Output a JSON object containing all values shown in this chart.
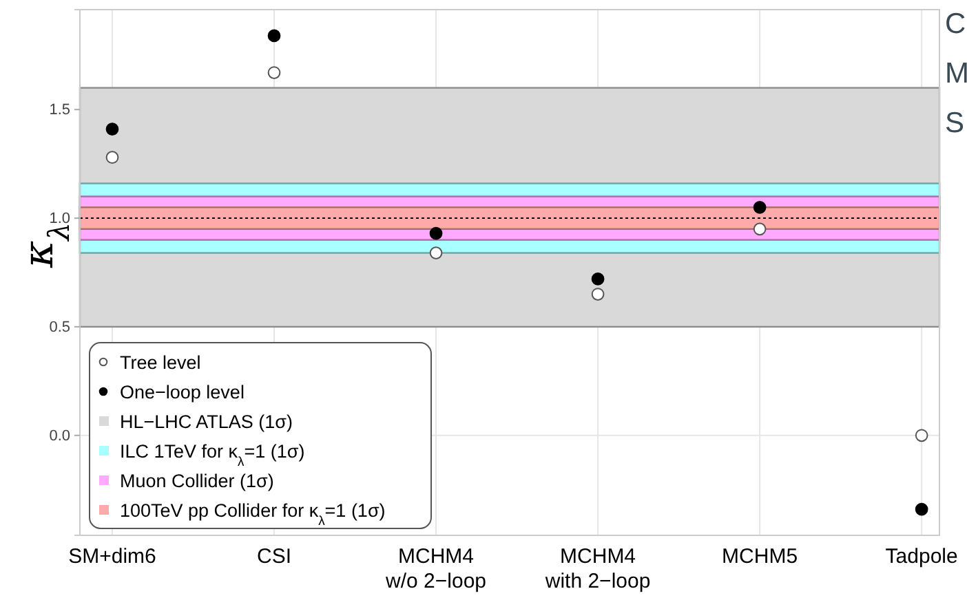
{
  "chart_data": {
    "type": "scatter",
    "ylabel": "κ$_{λ}$",
    "categories": [
      "SM+dim6",
      "CSI",
      "MCHM4\nw/o 2−loop",
      "MCHM4\nwith 2−loop",
      "MCHM5",
      "Tadpole"
    ],
    "series": [
      {
        "name": "Tree level",
        "color": "#ffffff",
        "values": [
          1.28,
          1.67,
          0.84,
          0.65,
          0.95,
          0.0
        ]
      },
      {
        "name": "One−loop level",
        "color": "#000000",
        "values": [
          1.41,
          1.84,
          0.93,
          0.72,
          1.05,
          -0.34
        ]
      }
    ],
    "ylim": [
      -0.46,
      1.96
    ],
    "yticks": [
      {
        "value": 0,
        "label": "0.0"
      },
      0.5,
      {
        "value": 1,
        "label": "1.0"
      },
      1.5
    ],
    "bands": [
      {
        "axis": "y",
        "from": 0.5,
        "to": 1.6,
        "label": "HL−LHC ATLAS (1σ)",
        "color": "#d9d9d9"
      },
      {
        "axis": "y",
        "from": 0.84,
        "to": 1.16,
        "label": "ILC 1TeV for κ$_{λ}$=1 (1σ)",
        "color": "#a8ffff"
      },
      {
        "axis": "y",
        "from": 0.9,
        "to": 1.1,
        "label": "Muon Collider (1σ)",
        "color": "#ffaaff"
      },
      {
        "axis": "y",
        "from": 0.95,
        "to": 1.05,
        "label": "100TeV pp Collider  for κ$_{λ}$=1 (1σ)",
        "color": "#ffaaaa"
      }
    ],
    "ref_lines": [
      {
        "axis": "y",
        "value": 1.0,
        "line_style": "dotted",
        "color": "#000000"
      }
    ],
    "annotations": [
      "C",
      "M",
      "S"
    ],
    "grid": true,
    "legend": "bottom left",
    "marker": "circle"
  }
}
